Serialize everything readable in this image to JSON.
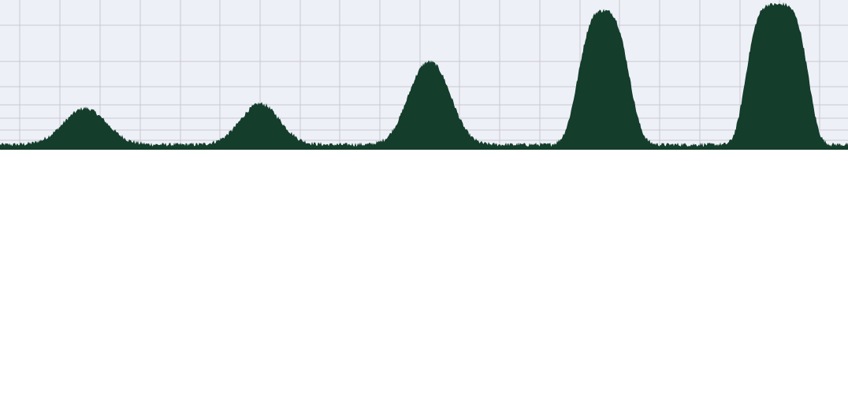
{
  "colors": {
    "plot_background": "#eef0f7",
    "grid": "#c8c9d1",
    "fill": "#143d2b",
    "page_background": "#ffffff"
  },
  "chart_data": {
    "type": "area",
    "title": "",
    "xlabel": "",
    "ylabel": "",
    "xlim": [
      0,
      1076
    ],
    "ylim": [
      0,
      190
    ],
    "grid": true,
    "legend": "none",
    "x_gridlines": [
      25,
      76,
      127,
      178,
      229,
      279,
      330,
      381,
      431,
      482,
      533,
      583,
      634,
      685,
      736,
      786,
      837,
      888,
      939,
      989,
      1040
    ],
    "y_gridlines": [
      32,
      78,
      110,
      133,
      150,
      165,
      178
    ],
    "baseline": 6,
    "noise_amplitude": 2.5,
    "series": [
      {
        "peaks": [
          {
            "center": 108,
            "height": 46,
            "width": 38,
            "shape": 2
          },
          {
            "center": 330,
            "height": 52,
            "width": 35,
            "shape": 2
          },
          {
            "center": 545,
            "height": 105,
            "width": 36,
            "shape": 2.2
          },
          {
            "center": 766,
            "height": 170,
            "width": 37,
            "shape": 3
          },
          {
            "center": 986,
            "height": 178,
            "width": 43,
            "shape": 4
          }
        ]
      }
    ]
  }
}
